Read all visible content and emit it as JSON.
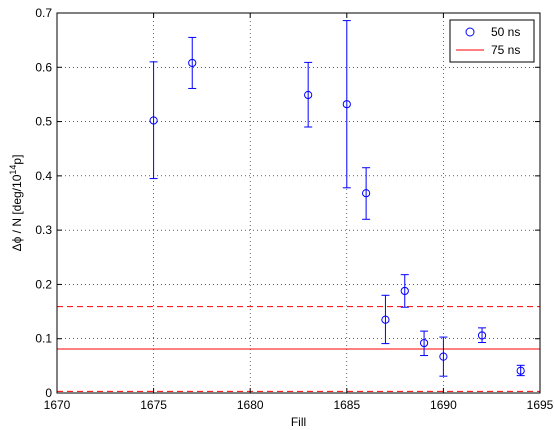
{
  "chart_data": {
    "type": "scatter",
    "xlabel": "Fill",
    "ylabel_main": "Δϕ / N [deg/10",
    "ylabel_sup": "14",
    "ylabel_tail": "p]",
    "xlim": [
      1670,
      1695
    ],
    "ylim": [
      0,
      0.7
    ],
    "xticks": [
      1670,
      1675,
      1680,
      1685,
      1690,
      1695
    ],
    "yticks": [
      0,
      0.1,
      0.2,
      0.3,
      0.4,
      0.5,
      0.6,
      0.7
    ],
    "xtick_labels": [
      "1670",
      "1675",
      "1680",
      "1685",
      "1690",
      "1695"
    ],
    "ytick_labels": [
      "0",
      "0.1",
      "0.2",
      "0.3",
      "0.4",
      "0.5",
      "0.6",
      "0.7"
    ],
    "grid": true,
    "legend_position": "top-right",
    "legend": [
      {
        "label": "50 ns",
        "marker": "circle",
        "color": "#0000ff"
      },
      {
        "label": "75 ns",
        "marker": "line",
        "color": "#ff0000"
      }
    ],
    "series": [
      {
        "name": "50 ns",
        "color": "#0000ff",
        "marker": "open-circle",
        "points": [
          {
            "x": 1675,
            "y": 0.502,
            "yerr_low": 0.395,
            "yerr_high": 0.61
          },
          {
            "x": 1677,
            "y": 0.608,
            "yerr_low": 0.561,
            "yerr_high": 0.655
          },
          {
            "x": 1683,
            "y": 0.549,
            "yerr_low": 0.49,
            "yerr_high": 0.609
          },
          {
            "x": 1685,
            "y": 0.532,
            "yerr_low": 0.378,
            "yerr_high": 0.686
          },
          {
            "x": 1686,
            "y": 0.368,
            "yerr_low": 0.32,
            "yerr_high": 0.415
          },
          {
            "x": 1687,
            "y": 0.135,
            "yerr_low": 0.091,
            "yerr_high": 0.18
          },
          {
            "x": 1688,
            "y": 0.188,
            "yerr_low": 0.158,
            "yerr_high": 0.218
          },
          {
            "x": 1689,
            "y": 0.092,
            "yerr_low": 0.069,
            "yerr_high": 0.114
          },
          {
            "x": 1690,
            "y": 0.067,
            "yerr_low": 0.031,
            "yerr_high": 0.103
          },
          {
            "x": 1692,
            "y": 0.106,
            "yerr_low": 0.093,
            "yerr_high": 0.12
          },
          {
            "x": 1694,
            "y": 0.041,
            "yerr_low": 0.032,
            "yerr_high": 0.051
          }
        ]
      },
      {
        "name": "75 ns",
        "color": "#ff0000",
        "type": "hline",
        "value": 0.081,
        "band": [
          0.003,
          0.159
        ]
      }
    ]
  }
}
